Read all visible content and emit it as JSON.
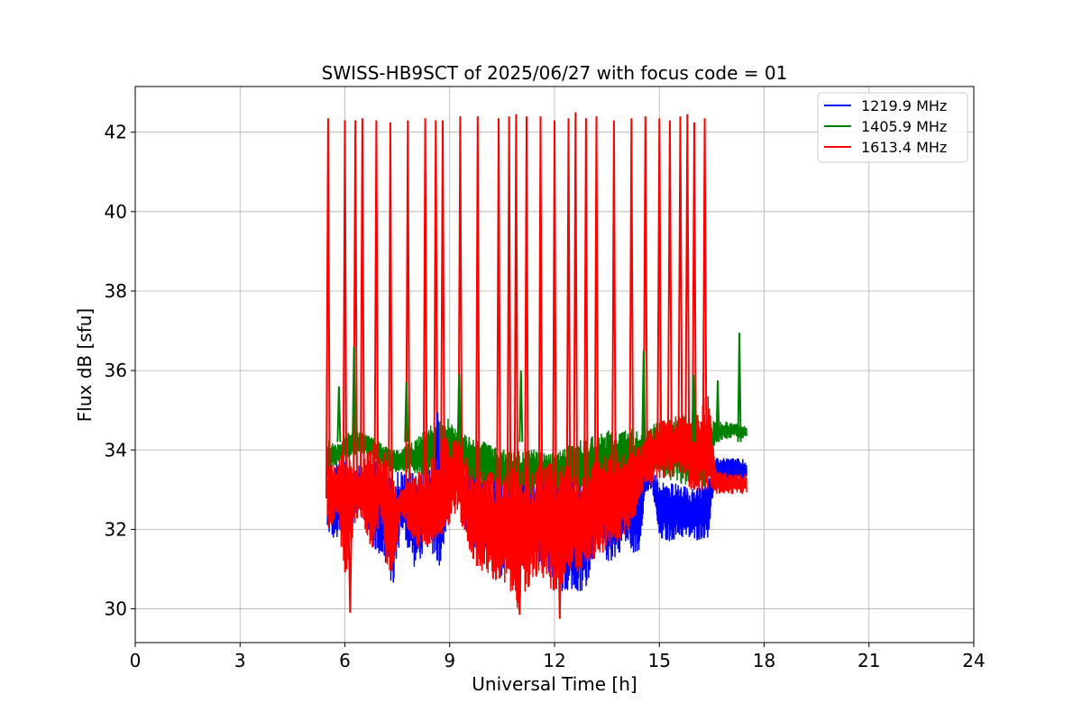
{
  "chart_data": {
    "type": "line",
    "title": "SWISS-HB9SCT of 2025/06/27 with focus code = 01",
    "xlabel": "Universal Time [h]",
    "ylabel": "Flux dB [sfu]",
    "xlim": [
      0,
      24
    ],
    "ylim": [
      29.15,
      43.15
    ],
    "xticks": [
      0,
      3,
      6,
      9,
      12,
      15,
      18,
      21,
      24
    ],
    "yticks": [
      30,
      32,
      34,
      36,
      38,
      40,
      42
    ],
    "grid": true,
    "legend_position": "top-right",
    "series": [
      {
        "name": "1219.9 MHz",
        "color": "#0000ff",
        "x": [
          5.5,
          5.6,
          5.75,
          6.0,
          6.4,
          6.8,
          7.0,
          7.2,
          7.4,
          7.6,
          8.0,
          8.4,
          8.7,
          9.0,
          9.2,
          9.6,
          10.0,
          10.4,
          10.8,
          11.0,
          11.4,
          11.8,
          12.0,
          12.4,
          12.8,
          13.2,
          13.6,
          14.0,
          14.4,
          14.6,
          14.8,
          15.0,
          15.3,
          15.6,
          16.0,
          16.4,
          16.6,
          17.0,
          17.5
        ],
        "min": [
          32.0,
          31.75,
          31.7,
          31.7,
          32.5,
          31.5,
          31.3,
          31.0,
          30.45,
          32.0,
          31.0,
          31.6,
          31.0,
          32.5,
          33.2,
          31.2,
          31.5,
          30.8,
          31.0,
          31.0,
          31.2,
          31.0,
          30.5,
          30.4,
          30.2,
          31.5,
          31.1,
          31.6,
          31.3,
          32.9,
          33.0,
          31.7,
          31.7,
          31.8,
          31.7,
          31.8,
          33.3,
          33.2,
          33.2
        ],
        "max": [
          32.5,
          33.6,
          33.85,
          33.7,
          33.7,
          33.8,
          33.8,
          33.6,
          33.5,
          33.5,
          33.5,
          33.4,
          34.95,
          33.6,
          33.6,
          33.5,
          33.5,
          33.6,
          33.5,
          33.4,
          33.5,
          33.5,
          33.5,
          33.5,
          33.5,
          33.6,
          33.6,
          33.5,
          33.5,
          33.5,
          33.5,
          33.2,
          33.2,
          33.1,
          33.0,
          33.3,
          33.8,
          33.8,
          33.75
        ]
      },
      {
        "name": "1405.9 MHz",
        "color": "#008000",
        "x": [
          5.5,
          5.6,
          5.75,
          6.0,
          6.4,
          6.8,
          7.0,
          7.2,
          7.4,
          7.6,
          8.0,
          8.4,
          8.7,
          9.0,
          9.2,
          9.6,
          10.0,
          10.4,
          10.8,
          11.0,
          11.4,
          11.8,
          12.0,
          12.4,
          12.8,
          13.2,
          13.6,
          14.0,
          14.4,
          14.6,
          14.8,
          15.0,
          15.3,
          15.6,
          16.0,
          16.4,
          16.6,
          17.0,
          17.5
        ],
        "min": [
          33.2,
          33.5,
          33.6,
          33.8,
          33.9,
          33.8,
          33.6,
          33.5,
          33.4,
          33.5,
          33.4,
          33.3,
          33.5,
          33.5,
          33.4,
          33.2,
          33.0,
          32.9,
          32.9,
          32.8,
          32.9,
          33.0,
          33.0,
          33.0,
          32.9,
          33.0,
          33.0,
          33.1,
          33.2,
          33.3,
          33.4,
          33.5,
          33.2,
          33.1,
          33.0,
          33.1,
          34.2,
          34.3,
          34.3
        ],
        "max": [
          34.4,
          34.2,
          34.1,
          34.4,
          34.5,
          34.3,
          34.2,
          34.1,
          34.0,
          34.0,
          34.3,
          34.6,
          34.7,
          34.8,
          34.5,
          34.3,
          34.2,
          34.0,
          34.0,
          34.0,
          34.0,
          33.9,
          33.9,
          34.1,
          34.3,
          34.4,
          34.5,
          34.5,
          34.6,
          34.6,
          34.7,
          34.7,
          34.8,
          34.9,
          34.9,
          34.8,
          34.7,
          34.7,
          34.6
        ]
      },
      {
        "name": "1613.4 MHz",
        "color": "#ff0000",
        "x": [
          5.5,
          5.6,
          5.75,
          6.0,
          6.4,
          6.8,
          7.0,
          7.2,
          7.4,
          7.6,
          8.0,
          8.4,
          8.7,
          9.0,
          9.2,
          9.6,
          10.0,
          10.4,
          10.8,
          11.0,
          11.4,
          11.8,
          12.0,
          12.4,
          12.8,
          13.2,
          13.6,
          14.0,
          14.4,
          14.6,
          14.8,
          15.0,
          15.3,
          15.6,
          16.0,
          16.4,
          16.6,
          17.0,
          17.5
        ],
        "min": [
          32.0,
          31.9,
          32.5,
          30.8,
          32.5,
          31.2,
          32.4,
          30.8,
          31.0,
          32.5,
          31.5,
          31.5,
          31.8,
          32.0,
          32.5,
          31.3,
          30.8,
          30.6,
          30.3,
          29.9,
          30.8,
          30.6,
          30.3,
          30.8,
          31.0,
          31.3,
          31.5,
          31.8,
          32.5,
          33.2,
          33.1,
          33.3,
          33.3,
          33.4,
          32.9,
          33.0,
          32.9,
          32.9,
          32.9
        ],
        "max": [
          33.6,
          34.0,
          33.4,
          34.2,
          33.5,
          34.2,
          34.0,
          33.9,
          33.3,
          33.0,
          33.4,
          33.8,
          34.2,
          34.4,
          34.4,
          33.6,
          33.5,
          33.4,
          33.6,
          33.5,
          33.6,
          33.7,
          33.7,
          33.6,
          33.5,
          33.8,
          33.9,
          34.0,
          34.1,
          34.3,
          34.6,
          34.7,
          34.8,
          34.9,
          34.9,
          35.5,
          33.5,
          33.4,
          33.4
        ],
        "spikes": [
          5.52,
          6.0,
          6.3,
          6.5,
          6.9,
          7.3,
          7.8,
          8.3,
          8.6,
          8.8,
          9.3,
          9.8,
          10.4,
          10.7,
          10.9,
          11.2,
          11.6,
          12.0,
          12.4,
          12.6,
          12.9,
          13.2,
          13.7,
          14.2,
          14.6,
          15.0,
          15.3,
          15.6,
          15.8,
          16.0,
          16.3
        ]
      }
    ],
    "spike_peaks": [
      42.35,
      42.3,
      42.3,
      42.35,
      42.3,
      42.25,
      42.3,
      42.35,
      42.3,
      42.3,
      42.4,
      42.4,
      42.35,
      42.4,
      42.45,
      42.4,
      42.4,
      42.3,
      42.35,
      42.5,
      42.35,
      42.4,
      42.3,
      42.35,
      42.4,
      42.35,
      42.3,
      42.4,
      42.45,
      42.25,
      42.35
    ],
    "green_spikes": [
      {
        "x": 5.83,
        "y": 35.6
      },
      {
        "x": 6.26,
        "y": 36.6
      },
      {
        "x": 7.76,
        "y": 35.7
      },
      {
        "x": 9.27,
        "y": 35.9
      },
      {
        "x": 11.04,
        "y": 36.0
      },
      {
        "x": 14.55,
        "y": 36.5
      },
      {
        "x": 15.98,
        "y": 35.9
      },
      {
        "x": 16.67,
        "y": 35.75
      },
      {
        "x": 17.29,
        "y": 36.95
      }
    ],
    "blue_spikes": [
      {
        "x": 8.65,
        "y": 34.95
      }
    ],
    "red_lows": [
      {
        "x": 6.15,
        "y": 29.9
      },
      {
        "x": 11.0,
        "y": 29.85
      },
      {
        "x": 12.15,
        "y": 29.75
      }
    ]
  }
}
